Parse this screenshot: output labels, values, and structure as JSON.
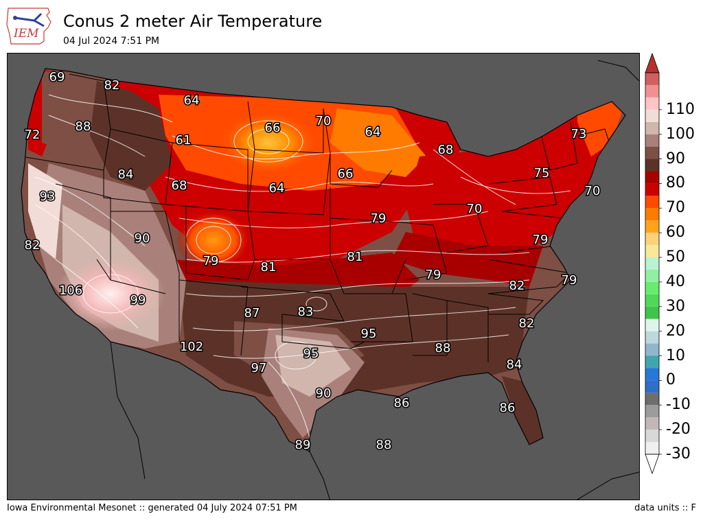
{
  "header": {
    "title": "Conus 2 meter Air Temperature",
    "subtitle": "04 Jul 2024 7:51 PM",
    "logo_text": "IEM"
  },
  "footer": {
    "credit": "Iowa Environmental Mesonet :: generated 04 July 2024 07:51 PM",
    "units": "data units :: F"
  },
  "legend": {
    "tick_labels": [
      "110",
      "100",
      "90",
      "80",
      "70",
      "60",
      "50",
      "40",
      "30",
      "20",
      "10",
      "0",
      "-10",
      "-20",
      "-30"
    ],
    "bins": [
      {
        "from": -30,
        "to": -25,
        "color": "#f0f0f0"
      },
      {
        "from": -25,
        "to": -20,
        "color": "#d8d8d8"
      },
      {
        "from": -20,
        "to": -15,
        "color": "#c0b8b8"
      },
      {
        "from": -15,
        "to": -10,
        "color": "#9c9c9c"
      },
      {
        "from": -10,
        "to": -5,
        "color": "#6e6e6e"
      },
      {
        "from": -5,
        "to": 0,
        "color": "#2f6fc8"
      },
      {
        "from": 0,
        "to": 5,
        "color": "#2878d8"
      },
      {
        "from": 5,
        "to": 10,
        "color": "#3fa6ae"
      },
      {
        "from": 10,
        "to": 15,
        "color": "#8fb6cc"
      },
      {
        "from": 15,
        "to": 20,
        "color": "#bcd8dc"
      },
      {
        "from": 20,
        "to": 25,
        "color": "#dff5ec"
      },
      {
        "from": 25,
        "to": 30,
        "color": "#3ec44a"
      },
      {
        "from": 30,
        "to": 35,
        "color": "#50d85a"
      },
      {
        "from": 35,
        "to": 40,
        "color": "#68ec6e"
      },
      {
        "from": 40,
        "to": 45,
        "color": "#90f0a0"
      },
      {
        "from": 45,
        "to": 50,
        "color": "#b8f4d0"
      },
      {
        "from": 50,
        "to": 55,
        "color": "#f8e898"
      },
      {
        "from": 55,
        "to": 60,
        "color": "#ffd27a"
      },
      {
        "from": 60,
        "to": 65,
        "color": "#ffa41a"
      },
      {
        "from": 65,
        "to": 70,
        "color": "#ff7b00"
      },
      {
        "from": 70,
        "to": 75,
        "color": "#ff4a00"
      },
      {
        "from": 75,
        "to": 80,
        "color": "#cc0000"
      },
      {
        "from": 80,
        "to": 85,
        "color": "#a80000"
      },
      {
        "from": 85,
        "to": 90,
        "color": "#5c3228"
      },
      {
        "from": 90,
        "to": 95,
        "color": "#7e4f45"
      },
      {
        "from": 95,
        "to": 100,
        "color": "#a9807a"
      },
      {
        "from": 100,
        "to": 105,
        "color": "#d1b6ad"
      },
      {
        "from": 105,
        "to": 110,
        "color": "#f2dcd8"
      },
      {
        "from": 110,
        "to": 115,
        "color": "#ffc4c4"
      },
      {
        "from": 115,
        "to": 120,
        "color": "#f09090"
      },
      {
        "from": 120,
        "to": 125,
        "color": "#d06060"
      }
    ],
    "over_color": "#b83030",
    "under_color": "#ffffff"
  },
  "colors": {
    "ocean": "#595959",
    "contour": "#ffffff",
    "border": "#000000"
  },
  "map": {
    "station_values": [
      {
        "id": "wa-coast",
        "text": "69"
      },
      {
        "id": "wa-east",
        "text": "82"
      },
      {
        "id": "or-coast",
        "text": "72"
      },
      {
        "id": "or-east",
        "text": "88"
      },
      {
        "id": "id-south",
        "text": "84"
      },
      {
        "id": "mt-north",
        "text": "64"
      },
      {
        "id": "mt-central",
        "text": "61"
      },
      {
        "id": "wy-north",
        "text": "68"
      },
      {
        "id": "nd-west",
        "text": "66"
      },
      {
        "id": "nd-east",
        "text": "70"
      },
      {
        "id": "mn-north",
        "text": "64"
      },
      {
        "id": "mi-upper",
        "text": "68"
      },
      {
        "id": "ne-north",
        "text": "64"
      },
      {
        "id": "ia-north",
        "text": "66"
      },
      {
        "id": "ny-north",
        "text": "73"
      },
      {
        "id": "ny-central",
        "text": "75"
      },
      {
        "id": "ma-coast",
        "text": "70"
      },
      {
        "id": "ca-north",
        "text": "93"
      },
      {
        "id": "ca-coast",
        "text": "82"
      },
      {
        "id": "ut-central",
        "text": "90"
      },
      {
        "id": "co-west",
        "text": "79"
      },
      {
        "id": "ks-west",
        "text": "81"
      },
      {
        "id": "mo-north",
        "text": "79"
      },
      {
        "id": "mo-west",
        "text": "81"
      },
      {
        "id": "in-north",
        "text": "70"
      },
      {
        "id": "wv-east",
        "text": "79"
      },
      {
        "id": "ky-west",
        "text": "79"
      },
      {
        "id": "va-south",
        "text": "82"
      },
      {
        "id": "nc-coast",
        "text": "79"
      },
      {
        "id": "ca-south",
        "text": "106"
      },
      {
        "id": "az-north",
        "text": "99"
      },
      {
        "id": "nm-east",
        "text": "87"
      },
      {
        "id": "ok-central",
        "text": "83"
      },
      {
        "id": "ar-central",
        "text": "95"
      },
      {
        "id": "sc-central",
        "text": "82"
      },
      {
        "id": "az-south",
        "text": "102"
      },
      {
        "id": "tx-north",
        "text": "95"
      },
      {
        "id": "tx-west",
        "text": "97"
      },
      {
        "id": "ga-south",
        "text": "88"
      },
      {
        "id": "ga-coast",
        "text": "84"
      },
      {
        "id": "tx-central",
        "text": "90"
      },
      {
        "id": "la-coast",
        "text": "86"
      },
      {
        "id": "fl-central",
        "text": "86"
      },
      {
        "id": "tx-south",
        "text": "89"
      },
      {
        "id": "gulf",
        "text": "88"
      }
    ]
  }
}
